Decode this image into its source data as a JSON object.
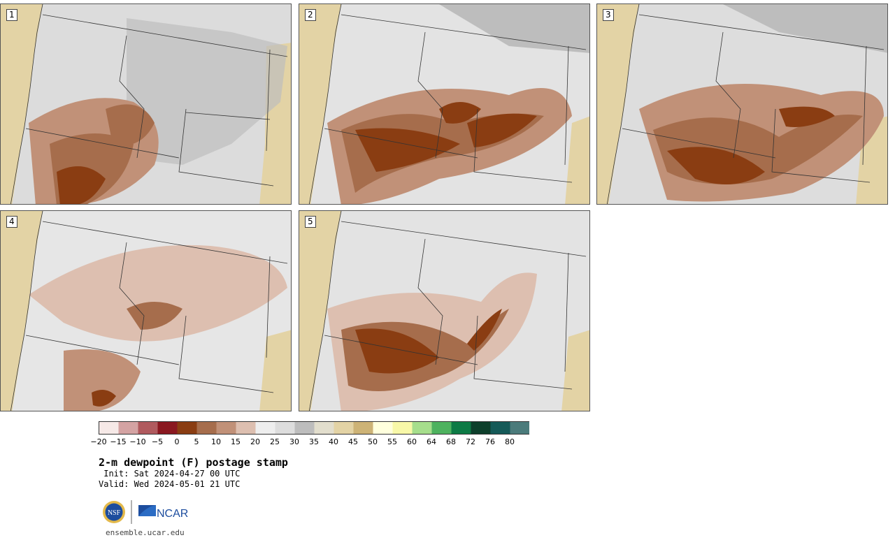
{
  "panels": [
    {
      "number": "1"
    },
    {
      "number": "2"
    },
    {
      "number": "3"
    },
    {
      "number": "4"
    },
    {
      "number": "5"
    }
  ],
  "colorbar": {
    "colors": [
      "#f6e9e7",
      "#d4a3a3",
      "#b05a5e",
      "#8a1820",
      "#8a3d12",
      "#a66d4c",
      "#c19178",
      "#ddbfb0",
      "#eeeeee",
      "#dddddd",
      "#bdbdbd",
      "#e2decd",
      "#e3d3a5",
      "#cdb376",
      "#ffffdd",
      "#f8f8a8",
      "#a6de8c",
      "#4eb25f",
      "#0d7a45",
      "#0d3f2b",
      "#155a58",
      "#4b7b7b"
    ],
    "tick_labels": [
      "−20",
      "−15",
      "−10",
      "−5",
      "0",
      "5",
      "10",
      "15",
      "20",
      "25",
      "30",
      "35",
      "40",
      "45",
      "50",
      "55",
      "60",
      "64",
      "68",
      "72",
      "76",
      "80"
    ]
  },
  "title": "2-m dewpoint (F) postage stamp",
  "init_line": " Init: Sat 2024-04-27 00 UTC",
  "valid_line": "Valid: Wed 2024-05-01 21 UTC",
  "logos": {
    "nsf": "NSF",
    "ncar": "NCAR"
  },
  "url": "ensemble.ucar.edu"
}
